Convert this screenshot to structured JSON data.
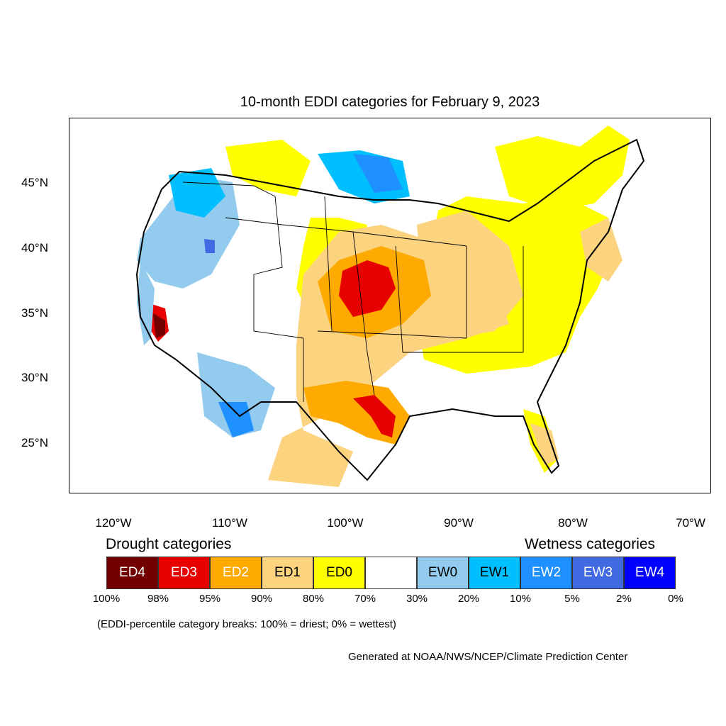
{
  "title": "10-month EDDI categories for February 9, 2023",
  "lat_labels": [
    "45°N",
    "40°N",
    "35°N",
    "30°N",
    "25°N"
  ],
  "lon_labels": [
    "120°W",
    "110°W",
    "100°W",
    "90°W",
    "80°W",
    "70°W"
  ],
  "legend": {
    "drought_heading": "Drought categories",
    "wetness_heading": "Wetness categories",
    "categories": [
      {
        "label": "ED4",
        "color": "#730000",
        "text_color": "#ffffff"
      },
      {
        "label": "ED3",
        "color": "#e60000",
        "text_color": "#ffffff"
      },
      {
        "label": "ED2",
        "color": "#ffaa00",
        "text_color": "#ffffff"
      },
      {
        "label": "ED1",
        "color": "#fcd37f",
        "text_color": "#000000"
      },
      {
        "label": "ED0",
        "color": "#ffff00",
        "text_color": "#000000"
      },
      {
        "label": "",
        "color": "#ffffff",
        "text_color": "#000000"
      },
      {
        "label": "EW0",
        "color": "#92cbed",
        "text_color": "#000000"
      },
      {
        "label": "EW1",
        "color": "#00bfff",
        "text_color": "#000000"
      },
      {
        "label": "EW2",
        "color": "#1e90ff",
        "text_color": "#ffffff"
      },
      {
        "label": "EW3",
        "color": "#4169e1",
        "text_color": "#ffffff"
      },
      {
        "label": "EW4",
        "color": "#0000ff",
        "text_color": "#ffffff"
      }
    ],
    "breaks": [
      "100%",
      "98%",
      "95%",
      "90%",
      "80%",
      "70%",
      "30%",
      "20%",
      "10%",
      "5%",
      "2%",
      "0%"
    ],
    "note": "(EDDI-percentile category breaks: 100% = driest; 0% = wettest)"
  },
  "credit": "Generated at NOAA/NWS/NCEP/Climate Prediction Center"
}
